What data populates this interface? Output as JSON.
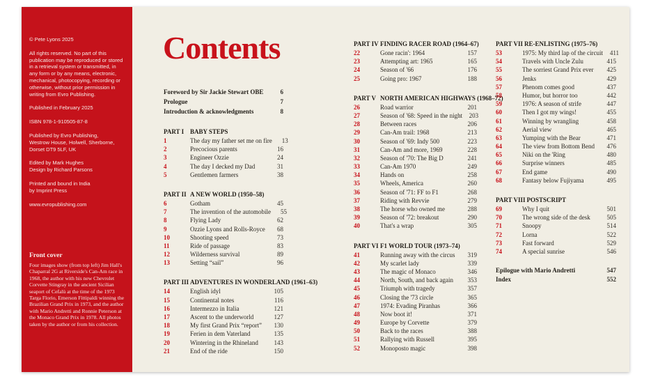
{
  "sidebar": {
    "copyright": "© Pete Lyons 2025",
    "rights": "All rights reserved. No part of this publication may be reproduced or stored in a retrieval system or transmitted, in any form or by any means, electronic, mechanical, photocopying, recording or otherwise, without prior permission in writing from Evro Publishing.",
    "published": "Published in February 2025",
    "isbn": "ISBN 978-1-910505-87-8",
    "publisher": "Published by Evro Publishing,\nWestrow House, Holwell, Sherborne,\nDorset DT9 5LF, UK",
    "credits": "Edited by Mark Hughes\nDesign by Richard Parsons",
    "printing": "Printed and bound in India\nby Imprint Press",
    "website": "www.evropublishing.com",
    "front_cover": {
      "heading": "Front cover",
      "text": "Four images show (from top left) Jim Hall's Chaparral 2G at Riverside's Can-Am race in 1968, the author with his new Chevrolet Corvette Stingray in the ancient Sicilian seaport of Cefalù at the time of the 1973 Targa Florio, Emerson Fittipaldi winning the Brazilian Grand Prix in 1973, and the author with Mario Andretti and Ronnie Peterson at the Monaco Grand Prix in 1978. All photos taken by the author or from his collection."
    }
  },
  "colors": {
    "panel_red": "#c5121b",
    "accent_red": "#c8121b",
    "paper_cream": "#f1eee4"
  },
  "contents": {
    "title": "Contents",
    "front_matter": [
      {
        "title": "Foreword by Sir Jackie Stewart OBE",
        "page": "6"
      },
      {
        "title": "Prologue",
        "page": "7"
      },
      {
        "title": "Introduction & acknowledgments",
        "page": "8"
      }
    ],
    "back_matter": [
      {
        "title": "Epilogue with Mario Andretti",
        "page": "547"
      },
      {
        "title": "Index",
        "page": "552"
      }
    ],
    "parts": [
      {
        "label": "PART I",
        "heading": "BABY STEPS",
        "chapters": [
          {
            "num": "1",
            "title": "The day my father set me on fire",
            "page": "13"
          },
          {
            "num": "2",
            "title": "Precocious parents",
            "page": "16"
          },
          {
            "num": "3",
            "title": "Engineer Ozzie",
            "page": "24"
          },
          {
            "num": "4",
            "title": "The day I decked my Dad",
            "page": "31"
          },
          {
            "num": "5",
            "title": "Gentlemen farmers",
            "page": "38"
          }
        ]
      },
      {
        "label": "PART II",
        "heading": "A NEW WORLD (1950–58)",
        "chapters": [
          {
            "num": "6",
            "title": "Gotham",
            "page": "45"
          },
          {
            "num": "7",
            "title": "The invention of the automobile",
            "page": "55"
          },
          {
            "num": "8",
            "title": "Flying Lady",
            "page": "62"
          },
          {
            "num": "9",
            "title": "Ozzie Lyons and Rolls-Royce",
            "page": "68"
          },
          {
            "num": "10",
            "title": "Shooting speed",
            "page": "73"
          },
          {
            "num": "11",
            "title": "Ride of passage",
            "page": "83"
          },
          {
            "num": "12",
            "title": "Wilderness survival",
            "page": "89"
          },
          {
            "num": "13",
            "title": "Setting “sail”",
            "page": "96"
          }
        ]
      },
      {
        "label": "PART III",
        "heading": "ADVENTURES IN WONDERLAND (1961–63)",
        "chapters": [
          {
            "num": "14",
            "title": "English idyl",
            "page": "105"
          },
          {
            "num": "15",
            "title": "Continental notes",
            "page": "116"
          },
          {
            "num": "16",
            "title": "Intermezzo in Italia",
            "page": "121"
          },
          {
            "num": "17",
            "title": "Ascent to the underworld",
            "page": "127"
          },
          {
            "num": "18",
            "title": "My first Grand Prix “report”",
            "page": "130"
          },
          {
            "num": "19",
            "title": "Ferien in dem Vaterland",
            "page": "135"
          },
          {
            "num": "20",
            "title": "Wintering in the Rhineland",
            "page": "143"
          },
          {
            "num": "21",
            "title": "End of the ride",
            "page": "150"
          }
        ]
      },
      {
        "label": "PART IV",
        "heading": "FINDING RACER ROAD (1964–67)",
        "chapters": [
          {
            "num": "22",
            "title": "Gone racin': 1964",
            "page": "157"
          },
          {
            "num": "23",
            "title": "Attempting art: 1965",
            "page": "165"
          },
          {
            "num": "24",
            "title": "Season of '66",
            "page": "176"
          },
          {
            "num": "25",
            "title": "Going pro: 1967",
            "page": "188"
          }
        ]
      },
      {
        "label": "PART V",
        "heading": "NORTH AMERICAN HIGHWAYS (1968–72)",
        "chapters": [
          {
            "num": "26",
            "title": "Road warrior",
            "page": "201"
          },
          {
            "num": "27",
            "title": "Season of '68: Speed in the night",
            "page": "203"
          },
          {
            "num": "28",
            "title": "Between races",
            "page": "206"
          },
          {
            "num": "29",
            "title": "Can-Am trail: 1968",
            "page": "213"
          },
          {
            "num": "30",
            "title": "Season of '69: Indy 500",
            "page": "223"
          },
          {
            "num": "31",
            "title": "Can-Am and more, 1969",
            "page": "228"
          },
          {
            "num": "32",
            "title": "Season of '70: The Big D",
            "page": "241"
          },
          {
            "num": "33",
            "title": "Can-Am 1970",
            "page": "249"
          },
          {
            "num": "34",
            "title": "Hands on",
            "page": "258"
          },
          {
            "num": "35",
            "title": "Wheels, America",
            "page": "260"
          },
          {
            "num": "36",
            "title": "Season of '71: FF to F1",
            "page": "268"
          },
          {
            "num": "37",
            "title": "Riding with Revvie",
            "page": "279"
          },
          {
            "num": "38",
            "title": "The horse who owned me",
            "page": "288"
          },
          {
            "num": "39",
            "title": "Season of '72: breakout",
            "page": "290"
          },
          {
            "num": "40",
            "title": "That's a wrap",
            "page": "305"
          }
        ]
      },
      {
        "label": "PART VI",
        "heading": "F1 WORLD TOUR (1973–74)",
        "chapters": [
          {
            "num": "41",
            "title": "Running away with the circus",
            "page": "319"
          },
          {
            "num": "42",
            "title": "My scarlet lady",
            "page": "339"
          },
          {
            "num": "43",
            "title": "The magic of Monaco",
            "page": "346"
          },
          {
            "num": "44",
            "title": "North, South, and back again",
            "page": "353"
          },
          {
            "num": "45",
            "title": "Triumph with tragedy",
            "page": "357"
          },
          {
            "num": "46",
            "title": "Closing the '73 circle",
            "page": "365"
          },
          {
            "num": "47",
            "title": "1974: Evading Piranhas",
            "page": "366"
          },
          {
            "num": "48",
            "title": "Now boot it!",
            "page": "371"
          },
          {
            "num": "49",
            "title": "Europe by Corvette",
            "page": "379"
          },
          {
            "num": "50",
            "title": "Back to the races",
            "page": "388"
          },
          {
            "num": "51",
            "title": "Rallying with Russell",
            "page": "395"
          },
          {
            "num": "52",
            "title": "Monoposto magic",
            "page": "398"
          }
        ]
      },
      {
        "label": "PART VII",
        "heading": "RE-ENLISTING (1975–76)",
        "chapters": [
          {
            "num": "53",
            "title": "1975: My third lap of the circuit",
            "page": "411"
          },
          {
            "num": "54",
            "title": "Travels with Uncle Zulu",
            "page": "415"
          },
          {
            "num": "55",
            "title": "The sorriest Grand Prix ever",
            "page": "425"
          },
          {
            "num": "56",
            "title": "Jenks",
            "page": "429"
          },
          {
            "num": "57",
            "title": "Phenom comes good",
            "page": "437"
          },
          {
            "num": "58",
            "title": "Humor, but horror too",
            "page": "442"
          },
          {
            "num": "59",
            "title": "1976: A season of strife",
            "page": "447"
          },
          {
            "num": "60",
            "title": "Then I got my wings!",
            "page": "455"
          },
          {
            "num": "61",
            "title": "Winning by wrangling",
            "page": "458"
          },
          {
            "num": "62",
            "title": "Aerial view",
            "page": "465"
          },
          {
            "num": "63",
            "title": "Yumping with the Bear",
            "page": "471"
          },
          {
            "num": "64",
            "title": "The view from Bottom Bend",
            "page": "476"
          },
          {
            "num": "65",
            "title": "Niki on the 'Ring",
            "page": "480"
          },
          {
            "num": "66",
            "title": "Surprise winners",
            "page": "485"
          },
          {
            "num": "67",
            "title": "End game",
            "page": "490"
          },
          {
            "num": "68",
            "title": "Fantasy below Fujiyama",
            "page": "495"
          }
        ]
      },
      {
        "label": "PART VIII",
        "heading": "POSTSCRIPT",
        "chapters": [
          {
            "num": "69",
            "title": "Why I quit",
            "page": "501"
          },
          {
            "num": "70",
            "title": "The wrong side of the desk",
            "page": "505"
          },
          {
            "num": "71",
            "title": "Snoopy",
            "page": "514"
          },
          {
            "num": "72",
            "title": "Lorna",
            "page": "522"
          },
          {
            "num": "73",
            "title": "Fast forward",
            "page": "529"
          },
          {
            "num": "74",
            "title": "A special sunrise",
            "page": "546"
          }
        ]
      }
    ]
  }
}
